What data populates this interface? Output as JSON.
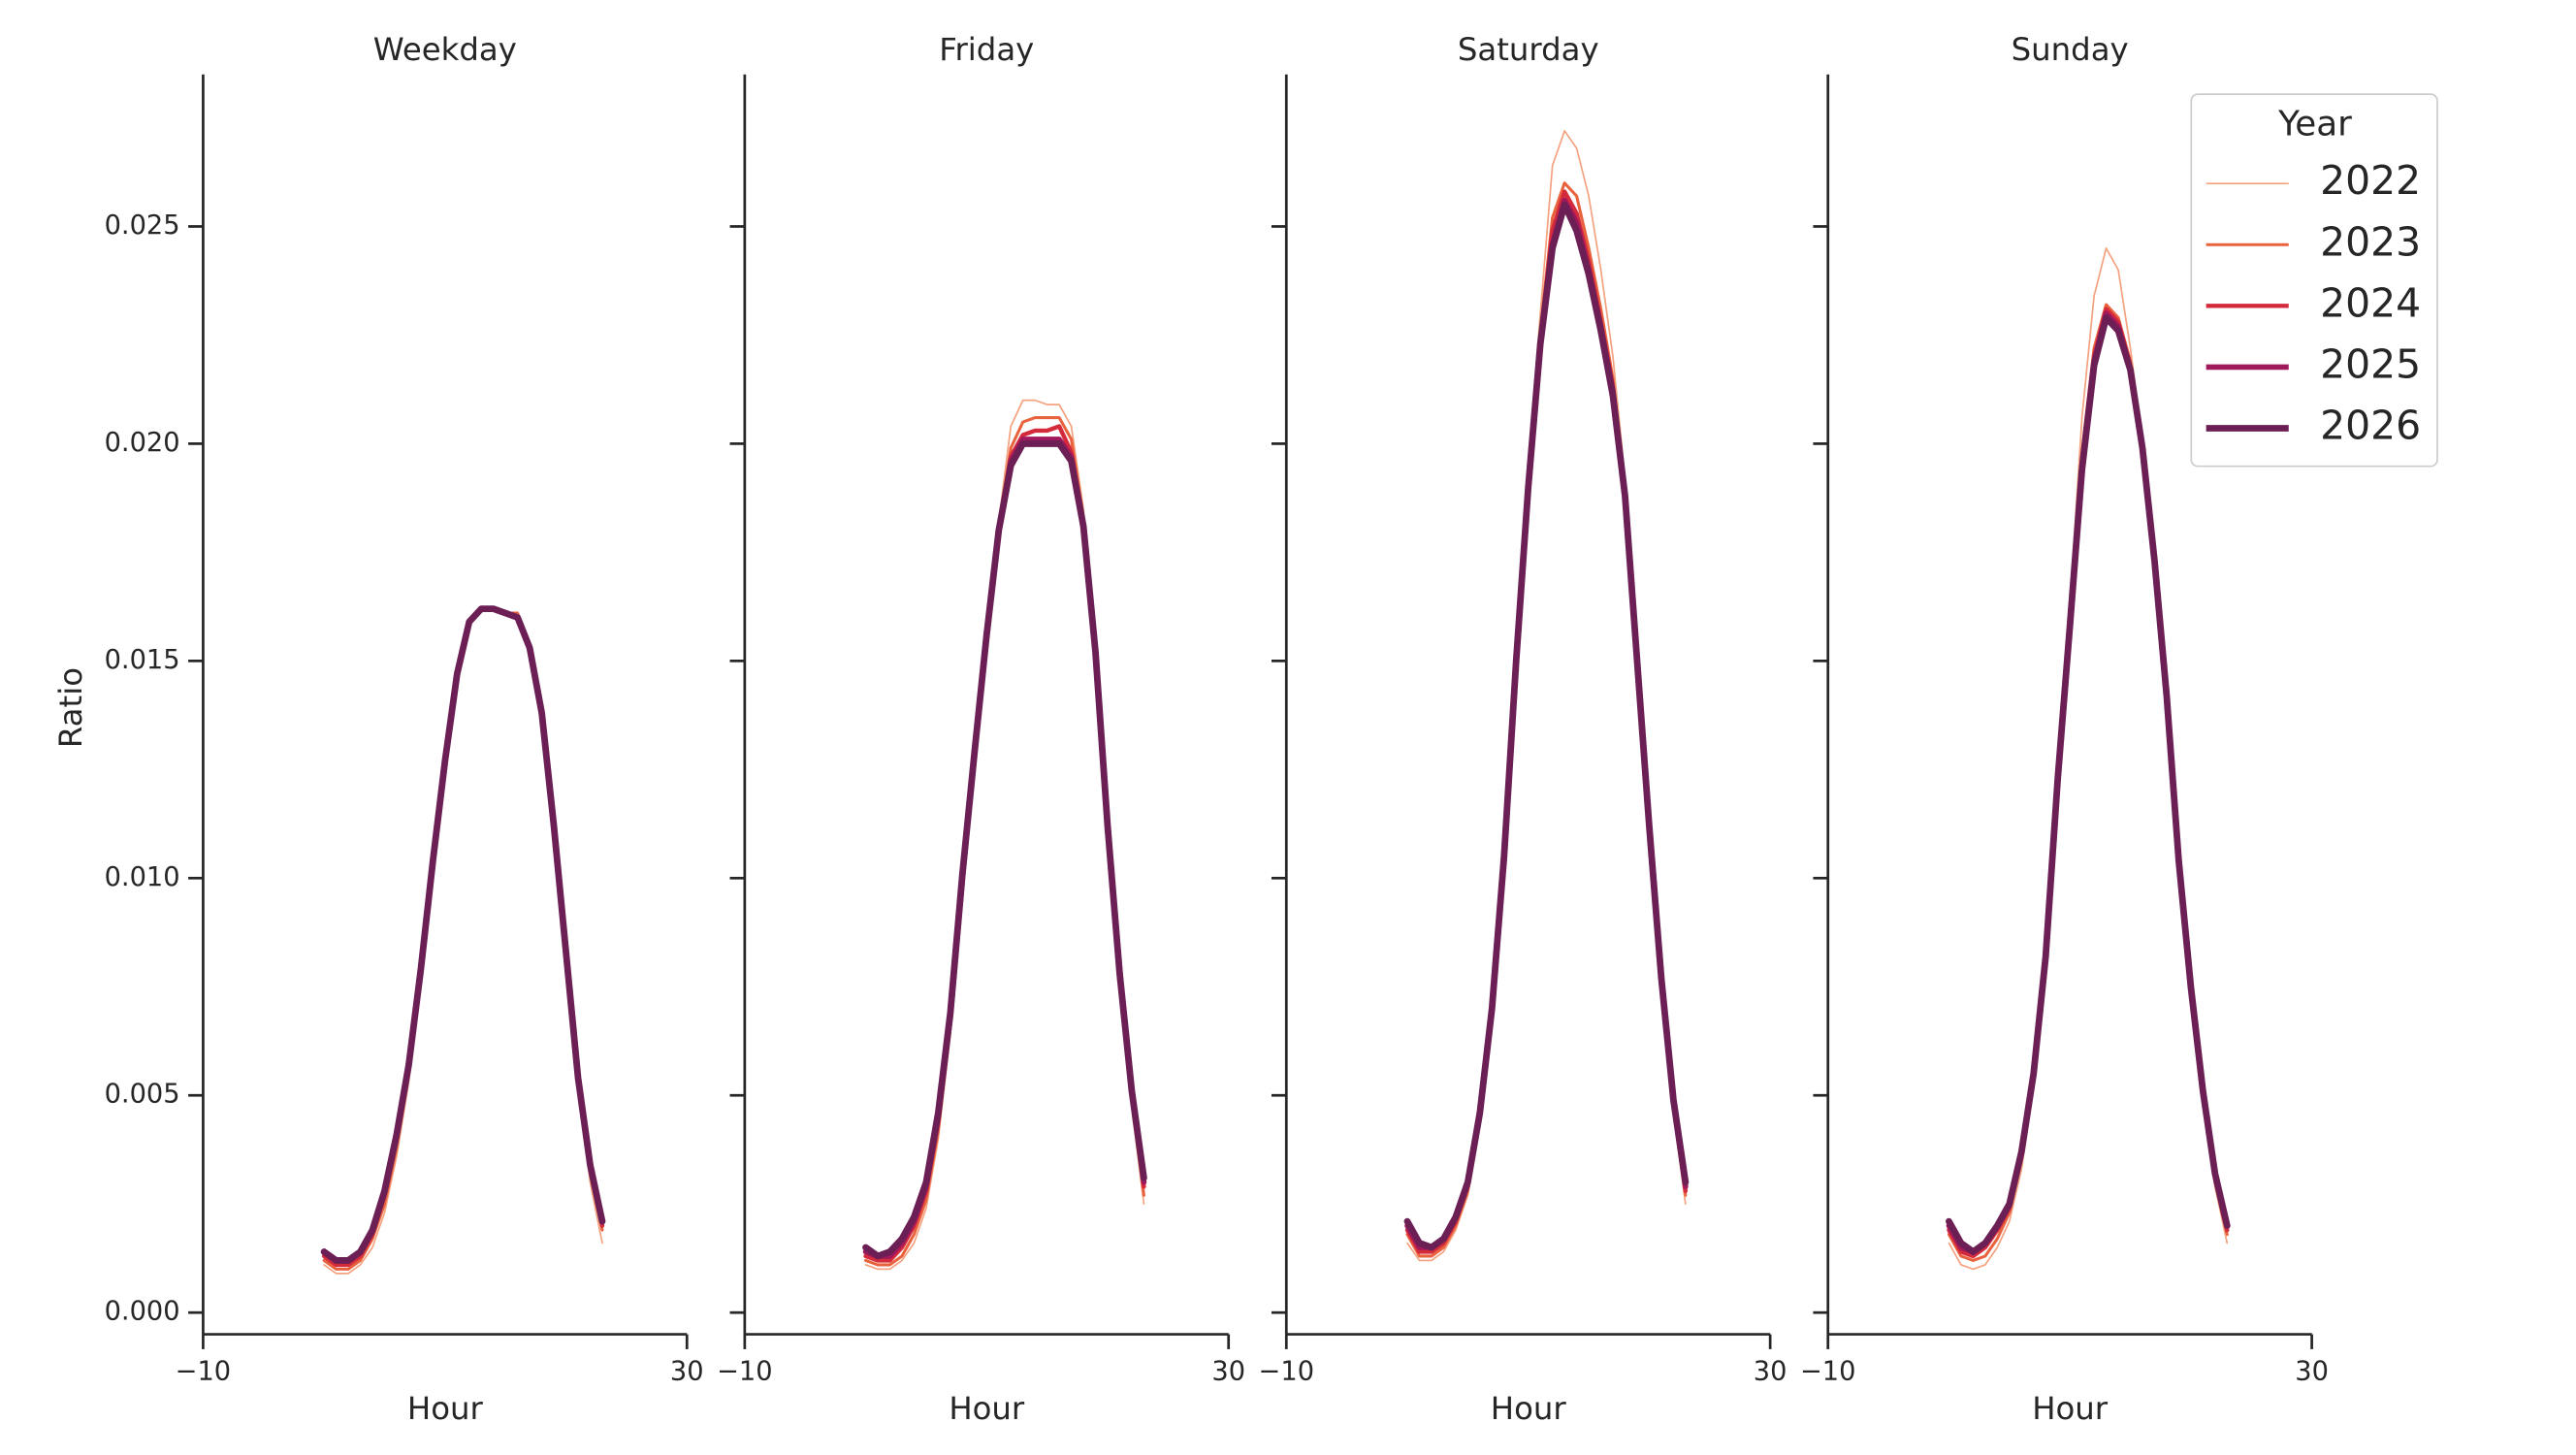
{
  "chart_data": [
    {
      "type": "line",
      "title": "Weekday",
      "xlabel": "Hour",
      "ylabel": "Ratio",
      "x": [
        0,
        1,
        2,
        3,
        4,
        5,
        6,
        7,
        8,
        9,
        10,
        11,
        12,
        13,
        14,
        15,
        16,
        17,
        18,
        19,
        20,
        21,
        22,
        23
      ],
      "xlim": [
        -10,
        30
      ],
      "xticks": [
        {
          "value": -10,
          "label": "−10"
        },
        30
      ],
      "ylim": [
        -0.0005,
        0.0285
      ],
      "yticks": [
        {
          "value": 0,
          "label": "0.000"
        },
        {
          "value": 0.005,
          "label": "0.005"
        },
        {
          "value": 0.01,
          "label": "0.010"
        },
        {
          "value": 0.015,
          "label": "0.015"
        },
        {
          "value": 0.02,
          "label": "0.020"
        },
        {
          "value": 0.025,
          "label": "0.025"
        }
      ],
      "series": [
        {
          "color": "#f4a27f",
          "values": [
            0.0011,
            0.0009,
            0.0009,
            0.0011,
            0.0015,
            0.0023,
            0.0036,
            0.0053,
            0.0076,
            0.0102,
            0.0126,
            0.0147,
            0.0159,
            0.0162,
            0.0162,
            0.0161,
            0.0161,
            0.0153,
            0.0137,
            0.011,
            0.0081,
            0.0051,
            0.003,
            0.0016
          ]
        },
        {
          "color": "#e9623e",
          "values": [
            0.0012,
            0.001,
            0.001,
            0.0012,
            0.0017,
            0.0025,
            0.0038,
            0.0055,
            0.0077,
            0.0103,
            0.0127,
            0.0147,
            0.0159,
            0.0162,
            0.0162,
            0.0161,
            0.0161,
            0.0153,
            0.0138,
            0.0111,
            0.0082,
            0.0053,
            0.0032,
            0.0019
          ]
        },
        {
          "color": "#d42b3c",
          "values": [
            0.0013,
            0.0011,
            0.0011,
            0.0013,
            0.0018,
            0.0027,
            0.004,
            0.0056,
            0.0078,
            0.0104,
            0.0127,
            0.0147,
            0.0159,
            0.0162,
            0.0162,
            0.0161,
            0.016,
            0.0153,
            0.0138,
            0.0112,
            0.0083,
            0.0054,
            0.0033,
            0.002
          ]
        },
        {
          "color": "#a0195c",
          "values": [
            0.0014,
            0.0012,
            0.0012,
            0.0014,
            0.0019,
            0.0028,
            0.0041,
            0.0057,
            0.0079,
            0.0104,
            0.0127,
            0.0147,
            0.0159,
            0.0162,
            0.0162,
            0.0161,
            0.016,
            0.0153,
            0.0138,
            0.0112,
            0.0083,
            0.0054,
            0.0034,
            0.0021
          ]
        },
        {
          "color": "#6b1f55",
          "values": [
            0.0014,
            0.0012,
            0.0012,
            0.0014,
            0.0019,
            0.0028,
            0.0041,
            0.0057,
            0.0079,
            0.0104,
            0.0127,
            0.0147,
            0.0159,
            0.0162,
            0.0162,
            0.0161,
            0.016,
            0.0153,
            0.0138,
            0.0112,
            0.0083,
            0.0054,
            0.0034,
            0.0021
          ]
        }
      ]
    },
    {
      "type": "line",
      "title": "Friday",
      "xlabel": "Hour",
      "x": [
        0,
        1,
        2,
        3,
        4,
        5,
        6,
        7,
        8,
        9,
        10,
        11,
        12,
        13,
        14,
        15,
        16,
        17,
        18,
        19,
        20,
        21,
        22,
        23
      ],
      "xlim": [
        -10,
        30
      ],
      "xticks": [
        {
          "value": -10,
          "label": "−10"
        },
        30
      ],
      "ylim": [
        -0.0005,
        0.0285
      ],
      "yticks": [
        0,
        0.005,
        0.01,
        0.015,
        0.02,
        0.025
      ],
      "series": [
        {
          "color": "#f4a27f",
          "values": [
            0.0011,
            0.001,
            0.001,
            0.0012,
            0.0016,
            0.0024,
            0.004,
            0.0064,
            0.0098,
            0.0128,
            0.0157,
            0.0182,
            0.0204,
            0.021,
            0.021,
            0.0209,
            0.0209,
            0.0204,
            0.0185,
            0.0153,
            0.011,
            0.0075,
            0.0047,
            0.0025
          ]
        },
        {
          "color": "#e9623e",
          "values": [
            0.0012,
            0.0011,
            0.0011,
            0.0013,
            0.0018,
            0.0026,
            0.0042,
            0.0066,
            0.0099,
            0.0128,
            0.0156,
            0.0181,
            0.0199,
            0.0205,
            0.0206,
            0.0206,
            0.0206,
            0.0201,
            0.0183,
            0.0152,
            0.0111,
            0.0076,
            0.0049,
            0.0027
          ]
        },
        {
          "color": "#d42b3c",
          "values": [
            0.0013,
            0.0012,
            0.0012,
            0.0015,
            0.002,
            0.0028,
            0.0044,
            0.0067,
            0.01,
            0.0129,
            0.0156,
            0.018,
            0.0197,
            0.0202,
            0.0203,
            0.0203,
            0.0204,
            0.0198,
            0.0182,
            0.0152,
            0.0111,
            0.0077,
            0.005,
            0.0029
          ]
        },
        {
          "color": "#a0195c",
          "values": [
            0.0014,
            0.0013,
            0.0013,
            0.0016,
            0.0021,
            0.0029,
            0.0045,
            0.0068,
            0.01,
            0.0129,
            0.0156,
            0.018,
            0.0196,
            0.0201,
            0.0201,
            0.0201,
            0.0201,
            0.0197,
            0.0181,
            0.0152,
            0.0112,
            0.0078,
            0.0051,
            0.003
          ]
        },
        {
          "color": "#6b1f55",
          "values": [
            0.0015,
            0.0013,
            0.0014,
            0.0017,
            0.0022,
            0.003,
            0.0046,
            0.0069,
            0.0101,
            0.0129,
            0.0156,
            0.018,
            0.0195,
            0.02,
            0.02,
            0.02,
            0.02,
            0.0196,
            0.0181,
            0.0152,
            0.0112,
            0.0078,
            0.0051,
            0.0031
          ]
        }
      ]
    },
    {
      "type": "line",
      "title": "Saturday",
      "xlabel": "Hour",
      "x": [
        0,
        1,
        2,
        3,
        4,
        5,
        6,
        7,
        8,
        9,
        10,
        11,
        12,
        13,
        14,
        15,
        16,
        17,
        18,
        19,
        20,
        21,
        22,
        23
      ],
      "xlim": [
        -10,
        30
      ],
      "xticks": [
        {
          "value": -10,
          "label": "−10"
        },
        30
      ],
      "ylim": [
        -0.0005,
        0.0285
      ],
      "yticks": [
        0,
        0.005,
        0.01,
        0.015,
        0.02,
        0.025
      ],
      "series": [
        {
          "color": "#f4a27f",
          "values": [
            0.0016,
            0.0012,
            0.0012,
            0.0014,
            0.0019,
            0.0027,
            0.0043,
            0.0068,
            0.0105,
            0.0152,
            0.0195,
            0.023,
            0.0264,
            0.0272,
            0.0268,
            0.0257,
            0.024,
            0.022,
            0.0192,
            0.0151,
            0.011,
            0.0074,
            0.0046,
            0.0025
          ]
        },
        {
          "color": "#e9623e",
          "values": [
            0.0018,
            0.0013,
            0.0013,
            0.0015,
            0.002,
            0.0028,
            0.0044,
            0.0069,
            0.0105,
            0.0151,
            0.0192,
            0.0226,
            0.0252,
            0.026,
            0.0257,
            0.0245,
            0.0231,
            0.0215,
            0.019,
            0.015,
            0.0111,
            0.0075,
            0.0047,
            0.0027
          ]
        },
        {
          "color": "#d42b3c",
          "values": [
            0.0019,
            0.0014,
            0.0014,
            0.0016,
            0.0021,
            0.0029,
            0.0045,
            0.007,
            0.0105,
            0.015,
            0.0191,
            0.0224,
            0.0249,
            0.0258,
            0.0253,
            0.0242,
            0.0228,
            0.0213,
            0.0189,
            0.015,
            0.0111,
            0.0076,
            0.0048,
            0.0028
          ]
        },
        {
          "color": "#a0195c",
          "values": [
            0.002,
            0.0015,
            0.0015,
            0.0017,
            0.0022,
            0.003,
            0.0046,
            0.007,
            0.0105,
            0.015,
            0.019,
            0.0223,
            0.0246,
            0.0256,
            0.0251,
            0.024,
            0.0227,
            0.0212,
            0.0188,
            0.015,
            0.0112,
            0.0077,
            0.0049,
            0.0029
          ]
        },
        {
          "color": "#6b1f55",
          "values": [
            0.0021,
            0.0016,
            0.0015,
            0.0017,
            0.0022,
            0.003,
            0.0046,
            0.007,
            0.0105,
            0.015,
            0.019,
            0.0223,
            0.0245,
            0.0255,
            0.0249,
            0.0239,
            0.0226,
            0.0211,
            0.0188,
            0.015,
            0.0112,
            0.0077,
            0.0049,
            0.003
          ]
        }
      ]
    },
    {
      "type": "line",
      "title": "Sunday",
      "xlabel": "Hour",
      "legend_title": "Year",
      "legend": "upper right",
      "x": [
        0,
        1,
        2,
        3,
        4,
        5,
        6,
        7,
        8,
        9,
        10,
        11,
        12,
        13,
        14,
        15,
        16,
        17,
        18,
        19,
        20,
        21,
        22,
        23
      ],
      "xlim": [
        -10,
        30
      ],
      "xticks": [
        {
          "value": -10,
          "label": "−10"
        },
        30
      ],
      "ylim": [
        -0.0005,
        0.0285
      ],
      "yticks": [
        0,
        0.005,
        0.01,
        0.015,
        0.02,
        0.025
      ],
      "series": [
        {
          "name": "2022",
          "color": "#f4a27f",
          "values": [
            0.0016,
            0.0011,
            0.001,
            0.0011,
            0.0015,
            0.0021,
            0.0033,
            0.0052,
            0.0081,
            0.0124,
            0.0163,
            0.0206,
            0.0234,
            0.0245,
            0.024,
            0.0222,
            0.0201,
            0.0174,
            0.0142,
            0.0103,
            0.0073,
            0.0048,
            0.0029,
            0.0016
          ]
        },
        {
          "name": "2023",
          "color": "#e9623e",
          "values": [
            0.0018,
            0.0013,
            0.0012,
            0.0013,
            0.0017,
            0.0023,
            0.0035,
            0.0054,
            0.0082,
            0.0124,
            0.016,
            0.0198,
            0.0222,
            0.0232,
            0.0229,
            0.0219,
            0.02,
            0.0173,
            0.0142,
            0.0103,
            0.0074,
            0.0049,
            0.003,
            0.0018
          ]
        },
        {
          "name": "2024",
          "color": "#d42b3c",
          "values": [
            0.0019,
            0.0014,
            0.0013,
            0.0015,
            0.0019,
            0.0024,
            0.0036,
            0.0055,
            0.0082,
            0.0123,
            0.0159,
            0.0196,
            0.022,
            0.0231,
            0.0228,
            0.0218,
            0.02,
            0.0173,
            0.0142,
            0.0104,
            0.0074,
            0.005,
            0.0031,
            0.0019
          ]
        },
        {
          "name": "2025",
          "color": "#a0195c",
          "values": [
            0.002,
            0.0015,
            0.0014,
            0.0016,
            0.002,
            0.0025,
            0.0037,
            0.0055,
            0.0082,
            0.0123,
            0.0158,
            0.0195,
            0.0219,
            0.023,
            0.0227,
            0.0217,
            0.0199,
            0.0173,
            0.0142,
            0.0104,
            0.0075,
            0.0051,
            0.0032,
            0.002
          ]
        },
        {
          "name": "2026",
          "color": "#6b1f55",
          "values": [
            0.0021,
            0.0016,
            0.0014,
            0.0016,
            0.002,
            0.0025,
            0.0037,
            0.0055,
            0.0082,
            0.0123,
            0.0158,
            0.0194,
            0.0218,
            0.0229,
            0.0226,
            0.0217,
            0.0199,
            0.0173,
            0.0142,
            0.0104,
            0.0075,
            0.0051,
            0.0032,
            0.002
          ]
        }
      ]
    }
  ]
}
